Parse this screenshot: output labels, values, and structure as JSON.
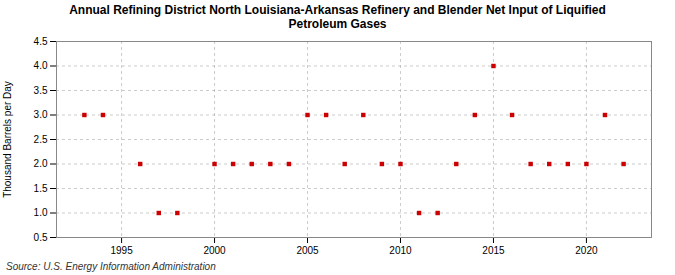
{
  "chart_data": {
    "type": "scatter",
    "title": "Annual Refining District North Louisiana-Arkansas Refinery and Blender Net Input of Liquified\nPetroleum Gases",
    "ylabel": "Thousand Barrels per Day",
    "source": "Source: U.S. Energy Information Administration",
    "x": [
      1993,
      1994,
      1996,
      1997,
      1998,
      2000,
      2001,
      2002,
      2003,
      2004,
      2005,
      2006,
      2007,
      2008,
      2009,
      2010,
      2011,
      2012,
      2013,
      2014,
      2015,
      2016,
      2017,
      2018,
      2019,
      2020,
      2021,
      2022
    ],
    "values": [
      3.0,
      3.0,
      2.0,
      1.0,
      1.0,
      2.0,
      2.0,
      2.0,
      2.0,
      2.0,
      3.0,
      3.0,
      2.0,
      3.0,
      2.0,
      2.0,
      1.0,
      1.0,
      2.0,
      3.0,
      4.0,
      3.0,
      2.0,
      2.0,
      2.0,
      2.0,
      3.0,
      2.0
    ],
    "color": "#cc0000",
    "marker": "square",
    "xlim": [
      1991.5,
      2023.5
    ],
    "ylim": [
      0.5,
      4.5
    ],
    "xticks": [
      1995,
      2000,
      2005,
      2010,
      2015,
      2020
    ],
    "yticks": [
      0.5,
      {
        "value": 1.0,
        "label": "1.0"
      },
      1.5,
      {
        "value": 2.0,
        "label": "2.0"
      },
      2.5,
      {
        "value": 3.0,
        "label": "3.0"
      },
      3.5,
      {
        "value": 4.0,
        "label": "4.0"
      },
      4.5
    ],
    "grid": true
  }
}
